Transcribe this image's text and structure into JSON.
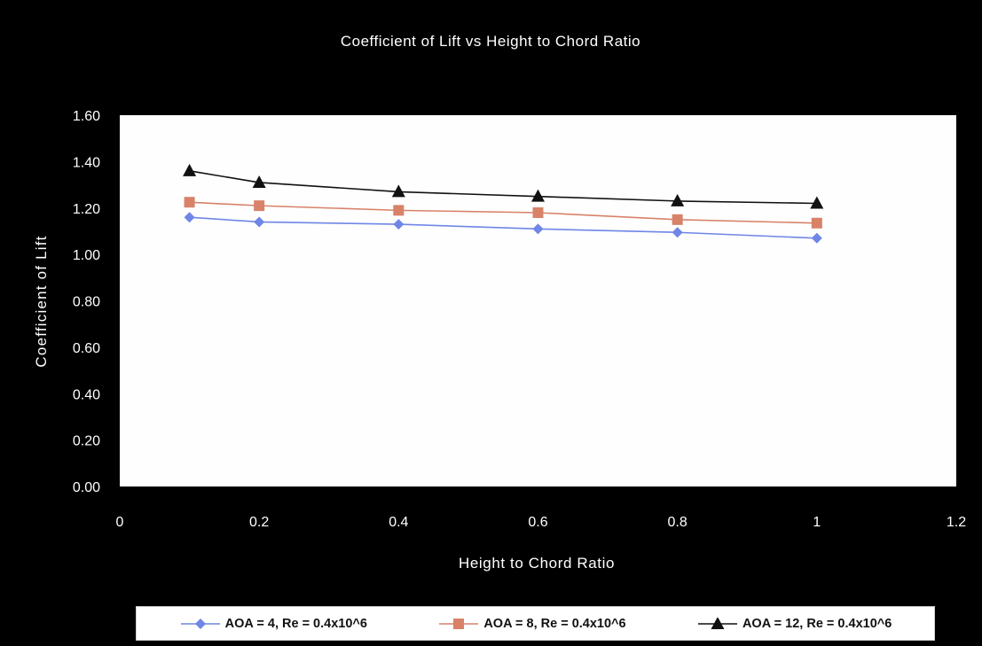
{
  "chart_data": {
    "type": "line",
    "title": "Coefficient of Lift vs Height to Chord Ratio",
    "xlabel": "Height to Chord Ratio",
    "ylabel": "Coefficient of Lift",
    "xlim": [
      0,
      1.2
    ],
    "ylim": [
      0,
      1.6
    ],
    "xticks": [
      "0",
      "0.2",
      "0.4",
      "0.6",
      "0.8",
      "1",
      "1.2"
    ],
    "yticks": [
      "0.00",
      "0.20",
      "0.40",
      "0.60",
      "0.80",
      "1.00",
      "1.20",
      "1.40",
      "1.60"
    ],
    "grid": false,
    "legend_position": "bottom",
    "series": [
      {
        "name": "AOA = 4, Re = 0.4x10^6",
        "color": "#6f86e6",
        "marker": "diamond",
        "x": [
          0.1,
          0.2,
          0.4,
          0.6,
          0.8,
          1.0
        ],
        "y": [
          1.16,
          1.14,
          1.13,
          1.11,
          1.095,
          1.07
        ]
      },
      {
        "name": "AOA = 8, Re = 0.4x10^6",
        "color": "#d8826a",
        "marker": "square",
        "x": [
          0.1,
          0.2,
          0.4,
          0.6,
          0.8,
          1.0
        ],
        "y": [
          1.225,
          1.21,
          1.19,
          1.18,
          1.15,
          1.135
        ]
      },
      {
        "name": "AOA = 12, Re = 0.4x10^6",
        "color": "#111111",
        "marker": "triangle",
        "x": [
          0.1,
          0.2,
          0.4,
          0.6,
          0.8,
          1.0
        ],
        "y": [
          1.36,
          1.31,
          1.27,
          1.25,
          1.23,
          1.22
        ]
      }
    ]
  }
}
